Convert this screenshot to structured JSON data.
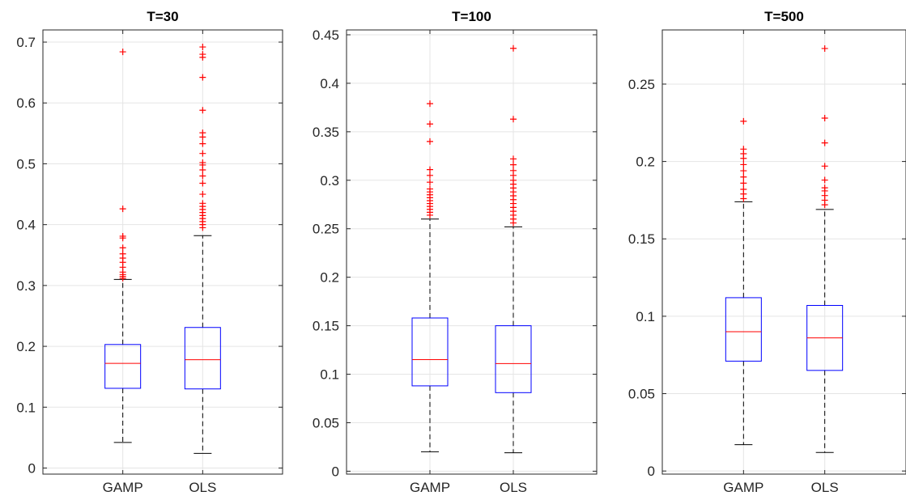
{
  "chart_data": [
    {
      "type": "box",
      "title": "T=30",
      "categories": [
        "GAMP",
        "OLS"
      ],
      "ylim": [
        -0.01,
        0.72
      ],
      "yticks": [
        0,
        0.1,
        0.2,
        0.3,
        0.4,
        0.5,
        0.6,
        0.7
      ],
      "ytick_labels": [
        "0",
        "0.1",
        "0.2",
        "0.3",
        "0.4",
        "0.5",
        "0.6",
        "0.7"
      ],
      "grid": true,
      "boxes": [
        {
          "category": "GAMP",
          "whisker_low": 0.042,
          "q1": 0.131,
          "median": 0.172,
          "q3": 0.203,
          "whisker_high": 0.31,
          "outliers": [
            0.312,
            0.315,
            0.318,
            0.322,
            0.33,
            0.338,
            0.345,
            0.352,
            0.362,
            0.378,
            0.381,
            0.426,
            0.684
          ]
        },
        {
          "category": "OLS",
          "whisker_low": 0.024,
          "q1": 0.13,
          "median": 0.178,
          "q3": 0.231,
          "whisker_high": 0.382,
          "outliers": [
            0.395,
            0.4,
            0.405,
            0.41,
            0.415,
            0.42,
            0.425,
            0.43,
            0.435,
            0.45,
            0.468,
            0.48,
            0.49,
            0.498,
            0.502,
            0.517,
            0.533,
            0.544,
            0.551,
            0.588,
            0.642,
            0.675,
            0.68,
            0.692
          ]
        }
      ]
    },
    {
      "type": "box",
      "title": "T=100",
      "categories": [
        "GAMP",
        "OLS"
      ],
      "ylim": [
        -0.003,
        0.455
      ],
      "yticks": [
        0,
        0.05,
        0.1,
        0.15,
        0.2,
        0.25,
        0.3,
        0.35,
        0.4,
        0.45
      ],
      "ytick_labels": [
        "0",
        "0.05",
        "0.1",
        "0.15",
        "0.2",
        "0.25",
        "0.3",
        "0.35",
        "0.4",
        "0.45"
      ],
      "grid": true,
      "boxes": [
        {
          "category": "GAMP",
          "whisker_low": 0.02,
          "q1": 0.088,
          "median": 0.115,
          "q3": 0.158,
          "whisker_high": 0.26,
          "outliers": [
            0.264,
            0.267,
            0.27,
            0.273,
            0.276,
            0.279,
            0.282,
            0.285,
            0.288,
            0.291,
            0.298,
            0.305,
            0.311,
            0.34,
            0.358,
            0.379
          ]
        },
        {
          "category": "OLS",
          "whisker_low": 0.019,
          "q1": 0.081,
          "median": 0.111,
          "q3": 0.15,
          "whisker_high": 0.252,
          "outliers": [
            0.256,
            0.26,
            0.264,
            0.268,
            0.272,
            0.276,
            0.28,
            0.284,
            0.288,
            0.292,
            0.296,
            0.3,
            0.305,
            0.31,
            0.316,
            0.322,
            0.363,
            0.436
          ]
        }
      ]
    },
    {
      "type": "box",
      "title": "T=500",
      "categories": [
        "GAMP",
        "OLS"
      ],
      "ylim": [
        -0.002,
        0.285
      ],
      "yticks": [
        0,
        0.05,
        0.1,
        0.15,
        0.2,
        0.25
      ],
      "ytick_labels": [
        "0",
        "0.05",
        "0.1",
        "0.15",
        "0.2",
        "0.25"
      ],
      "grid": true,
      "boxes": [
        {
          "category": "GAMP",
          "whisker_low": 0.017,
          "q1": 0.071,
          "median": 0.09,
          "q3": 0.112,
          "whisker_high": 0.174,
          "outliers": [
            0.176,
            0.179,
            0.182,
            0.186,
            0.19,
            0.194,
            0.198,
            0.202,
            0.205,
            0.208,
            0.226
          ]
        },
        {
          "category": "OLS",
          "whisker_low": 0.012,
          "q1": 0.065,
          "median": 0.086,
          "q3": 0.107,
          "whisker_high": 0.169,
          "outliers": [
            0.172,
            0.175,
            0.178,
            0.181,
            0.183,
            0.188,
            0.197,
            0.212,
            0.228,
            0.273
          ]
        }
      ]
    }
  ],
  "colors": {
    "box": "#0000ff",
    "median": "#ff0000",
    "outlier": "#ff0000",
    "whisker": "#000000",
    "grid": "#e5e5e5",
    "axis": "#262626"
  }
}
